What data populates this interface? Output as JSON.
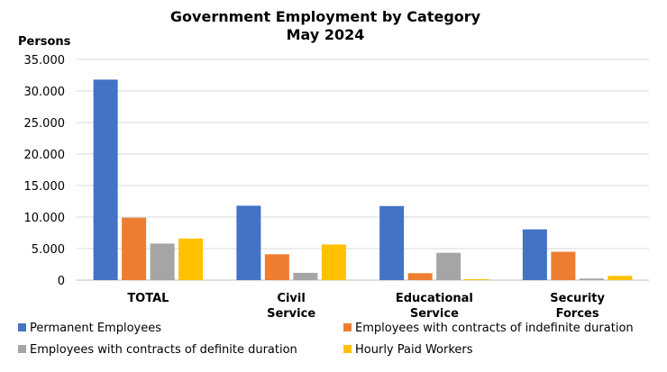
{
  "chart_data": {
    "type": "bar",
    "title": [
      "Government Employment by Category",
      "May 2024"
    ],
    "ylabel": "Persons",
    "ylim": [
      0,
      35000
    ],
    "yticks": [
      "0",
      "5.000",
      "10.000",
      "15.000",
      "20.000",
      "25.000",
      "30.000",
      "35.000"
    ],
    "grid": true,
    "legend_position": "bottom",
    "categories": [
      [
        "TOTAL"
      ],
      [
        "Civil",
        "Service"
      ],
      [
        "Educational",
        "Service"
      ],
      [
        "Security",
        "Forces"
      ]
    ],
    "series": [
      {
        "name": "Permanent Employees",
        "color": "#4472C4",
        "values": [
          31800,
          11800,
          11750,
          8050
        ]
      },
      {
        "name": "Employees with contracts of indefinite duration",
        "color": "#ED7D31",
        "values": [
          9900,
          4100,
          1100,
          4500
        ]
      },
      {
        "name": "Employees with contracts of definite duration",
        "color": "#A5A5A5",
        "values": [
          5800,
          1150,
          4330,
          250
        ]
      },
      {
        "name": "Hourly Paid Workers",
        "color": "#FFC000",
        "values": [
          6600,
          5650,
          150,
          680
        ]
      }
    ]
  }
}
